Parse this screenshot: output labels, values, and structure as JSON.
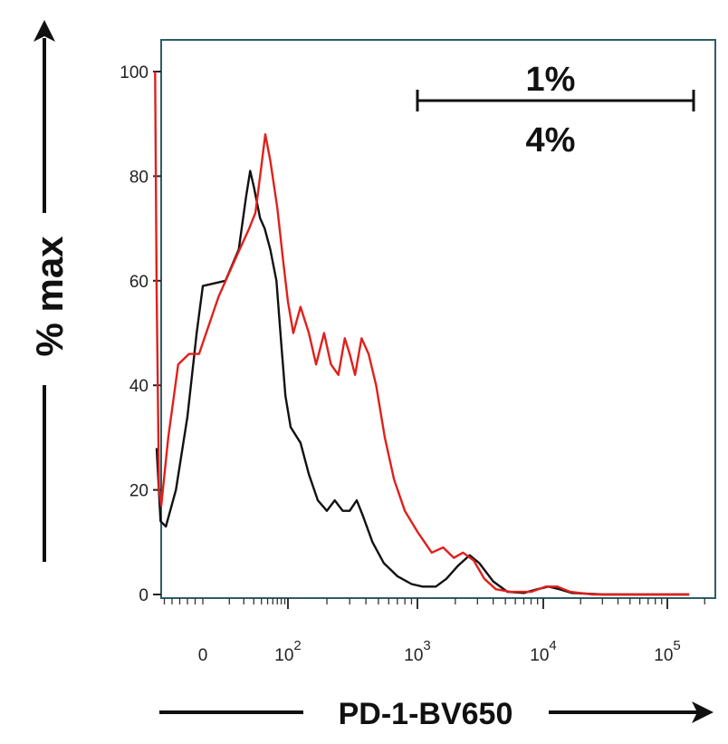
{
  "chart_data": {
    "type": "line",
    "title": "",
    "xlabel": "PD-1-BV650",
    "ylabel": "% max",
    "x_scale": "biexponential",
    "x_ticks": [
      {
        "value": 0,
        "base": "0",
        "exp": ""
      },
      {
        "value": 100,
        "base": "10",
        "exp": "2"
      },
      {
        "value": 1000,
        "base": "10",
        "exp": "3"
      },
      {
        "value": 10000,
        "base": "10",
        "exp": "4"
      },
      {
        "value": 100000,
        "base": "10",
        "exp": "5"
      }
    ],
    "y_ticks": [
      "0",
      "20",
      "40",
      "60",
      "80",
      "100"
    ],
    "ylim": [
      0,
      100
    ],
    "grid": false,
    "annotations": {
      "gate_top_label": "1%",
      "gate_bottom_label": "4%"
    },
    "series": [
      {
        "color": "#111111",
        "points": [
          [
            -60,
            28
          ],
          [
            -55,
            14
          ],
          [
            -48,
            13
          ],
          [
            -35,
            20
          ],
          [
            -20,
            34
          ],
          [
            -8,
            50
          ],
          [
            0,
            59
          ],
          [
            8,
            60
          ],
          [
            16,
            66
          ],
          [
            22,
            76
          ],
          [
            26,
            81
          ],
          [
            30,
            78
          ],
          [
            38,
            72
          ],
          [
            45,
            70
          ],
          [
            55,
            66
          ],
          [
            68,
            60
          ],
          [
            80,
            48
          ],
          [
            92,
            38
          ],
          [
            105,
            32
          ],
          [
            125,
            29
          ],
          [
            145,
            23
          ],
          [
            170,
            18
          ],
          [
            200,
            16
          ],
          [
            230,
            18
          ],
          [
            265,
            16
          ],
          [
            300,
            16
          ],
          [
            340,
            18
          ],
          [
            380,
            15
          ],
          [
            450,
            10
          ],
          [
            550,
            6
          ],
          [
            700,
            3.5
          ],
          [
            900,
            2
          ],
          [
            1100,
            1.5
          ],
          [
            1400,
            1.5
          ],
          [
            1700,
            3
          ],
          [
            2100,
            5.5
          ],
          [
            2600,
            7.5
          ],
          [
            3100,
            6
          ],
          [
            4000,
            2.5
          ],
          [
            5200,
            0.5
          ],
          [
            7000,
            0.3
          ],
          [
            9000,
            1
          ],
          [
            11000,
            1.5
          ],
          [
            13500,
            1
          ],
          [
            17000,
            0.3
          ],
          [
            30000,
            0
          ],
          [
            150000,
            0
          ]
        ]
      },
      {
        "color": "#e0201c",
        "points": [
          [
            -62,
            100
          ],
          [
            -60,
            58
          ],
          [
            -57,
            20
          ],
          [
            -54,
            17
          ],
          [
            -45,
            30
          ],
          [
            -32,
            44
          ],
          [
            -18,
            46
          ],
          [
            -5,
            46
          ],
          [
            5,
            57
          ],
          [
            15,
            65
          ],
          [
            25,
            70
          ],
          [
            32,
            73
          ],
          [
            40,
            82
          ],
          [
            46,
            88
          ],
          [
            55,
            83
          ],
          [
            70,
            74
          ],
          [
            85,
            64
          ],
          [
            100,
            56
          ],
          [
            110,
            50
          ],
          [
            125,
            55
          ],
          [
            145,
            50
          ],
          [
            165,
            44
          ],
          [
            190,
            50
          ],
          [
            215,
            44
          ],
          [
            245,
            42
          ],
          [
            275,
            49
          ],
          [
            300,
            46
          ],
          [
            330,
            42
          ],
          [
            370,
            49
          ],
          [
            420,
            46
          ],
          [
            480,
            40
          ],
          [
            560,
            30
          ],
          [
            660,
            22
          ],
          [
            800,
            16
          ],
          [
            1000,
            12
          ],
          [
            1300,
            8
          ],
          [
            1600,
            9
          ],
          [
            1950,
            7
          ],
          [
            2300,
            8
          ],
          [
            2800,
            6.5
          ],
          [
            3400,
            3
          ],
          [
            4200,
            1
          ],
          [
            5500,
            0.5
          ],
          [
            8000,
            0.5
          ],
          [
            10500,
            1.5
          ],
          [
            13000,
            1.5
          ],
          [
            16500,
            0.5
          ],
          [
            25000,
            0
          ],
          [
            150000,
            0
          ]
        ]
      }
    ]
  }
}
